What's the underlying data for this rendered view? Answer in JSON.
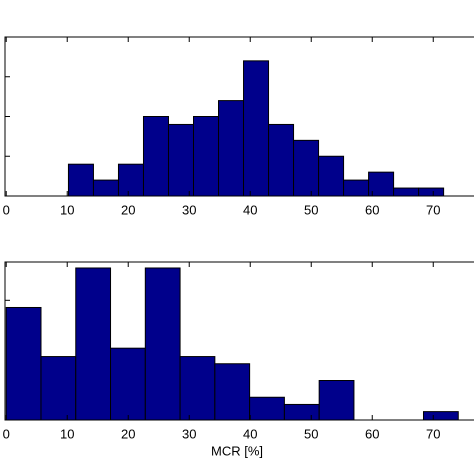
{
  "chart_data": [
    {
      "type": "histogram",
      "bins": [
        10.2,
        14.3,
        18.4,
        22.5,
        26.6,
        30.7,
        34.8,
        38.9,
        43,
        47.1,
        51.2,
        55.3,
        59.4,
        63.5,
        67.6,
        71.7
      ],
      "values": [
        4,
        2,
        4,
        10,
        9,
        10,
        12,
        17,
        9,
        7,
        5,
        2,
        3,
        1,
        1
      ],
      "color": "#00008b",
      "xlim": [
        -0.2,
        77.5
      ],
      "xticks": [
        0,
        10,
        20,
        30,
        40,
        50,
        60,
        70
      ],
      "ylim": [
        0,
        20
      ],
      "yticks": [
        0,
        5,
        10,
        15,
        20
      ]
    },
    {
      "type": "histogram",
      "bins": [
        0,
        5.7,
        11.4,
        17.1,
        22.8,
        28.5,
        34.2,
        39.9,
        45.6,
        51.3,
        57,
        62.7,
        68.4,
        74.1
      ],
      "values": [
        9.4,
        5.3,
        12.7,
        6,
        12.7,
        5.3,
        4.7,
        1.9,
        1.3,
        3.3,
        0,
        0,
        0.7
      ],
      "color": "#00008b",
      "xlim": [
        -0.2,
        77.5
      ],
      "xticks": [
        0,
        10,
        20,
        30,
        40,
        50,
        60,
        70
      ],
      "ylim": [
        0,
        13.2
      ],
      "yticks": [
        0,
        10
      ],
      "x_label": "MCR [%]"
    }
  ]
}
